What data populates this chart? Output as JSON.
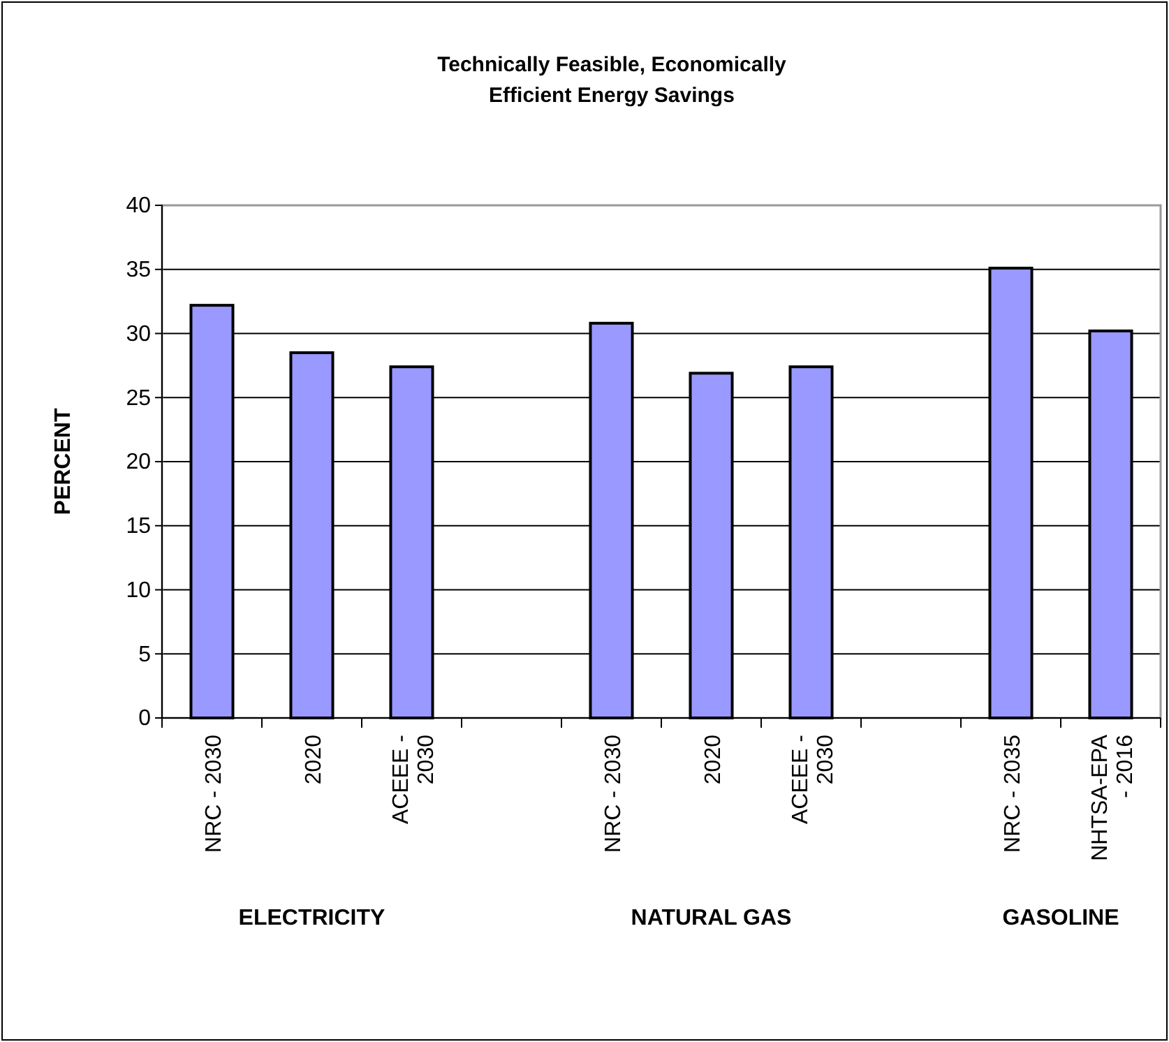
{
  "chart_data": {
    "type": "bar",
    "title": "Technically Feasible, Economically Efficient Energy Savings",
    "ylabel": "PERCENT",
    "categories": [
      "NRC - 2030",
      "2020",
      "ACEEE - 2030",
      null,
      "NRC - 2030",
      "2020",
      "ACEEE - 2030",
      null,
      "NRC - 2035",
      "NHTSA-EPA - 2016"
    ],
    "values": [
      32.2,
      28.5,
      27.4,
      null,
      30.8,
      26.9,
      27.4,
      null,
      35.1,
      30.2
    ],
    "color": "#9999ff",
    "ylim": [
      0,
      40
    ],
    "yticks": [
      0,
      5,
      10,
      15,
      20,
      25,
      30,
      35,
      40
    ],
    "grid": "y",
    "annotations": [
      "ELECTRICITY",
      "NATURAL GAS",
      "GASOLINE"
    ]
  }
}
